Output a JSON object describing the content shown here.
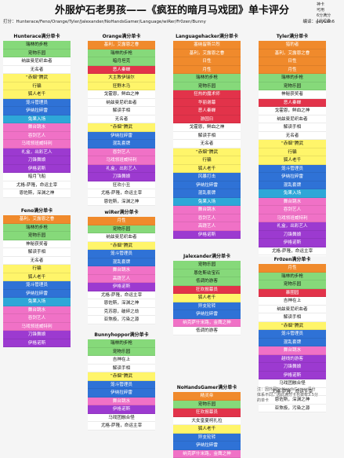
{
  "title": "外服炉石老男孩——《疯狂的暗月马戏团》单卡评分",
  "legend": [
    "神卡",
    "可用",
    "6分满分",
    "1分垃圾"
  ],
  "meta_left": "打分：Hunterace/Feno/Orange/Tyler/Jalexander/NoHandsGamer/Language/wiRer/Fr0zen/Bunny",
  "meta_right": "编译：geyuan6",
  "note": "注：因外网NoHandsGamer评分体系不同，因此满分卡也会有3.5分的单卡",
  "cards": [
    {
      "name": "Hunterace满分单卡",
      "rows": [
        {
          "text": "瑞林的步枪",
          "cls": "c-g"
        },
        {
          "text": "宠物乐园",
          "cls": "c-g"
        },
        {
          "text": "纳兹曼尼织血者",
          "cls": "c-w"
        },
        {
          "text": "无名者",
          "cls": "c-w"
        },
        {
          "text": "“赤烟”腾武",
          "cls": "c-y"
        },
        {
          "text": "行骗",
          "cls": "c-y"
        },
        {
          "text": "狐人老千",
          "cls": "c-y"
        },
        {
          "text": "笼斗管理员",
          "cls": "c-b"
        },
        {
          "text": "伊纳拉碎雷",
          "cls": "c-b"
        },
        {
          "text": "兔果入场",
          "cls": "c-c"
        },
        {
          "text": "舞台跳水",
          "cls": "c-k"
        },
        {
          "text": "吞剑艺人",
          "cls": "c-k"
        },
        {
          "text": "马戏领班威特利",
          "cls": "c-k"
        },
        {
          "text": "礼盒，出彩艺人",
          "cls": "c-p"
        },
        {
          "text": "刀锋舞娘",
          "cls": "c-p"
        },
        {
          "text": "伊格诺斯",
          "cls": "c-p"
        },
        {
          "text": "暗月飞船",
          "cls": "c-w"
        },
        {
          "text": "尤格-萨隆，命运主宰",
          "cls": "c-w"
        },
        {
          "text": "恩佐斯，深渊之神",
          "cls": "c-w"
        }
      ]
    },
    {
      "name": "Feno满分单卡",
      "rows": [
        {
          "text": "基利，艾露恩之眷",
          "cls": "c-o"
        },
        {
          "text": "瑞林的步枪",
          "cls": "c-g"
        },
        {
          "text": "宠物乐园",
          "cls": "c-g"
        },
        {
          "text": "神秘获奖者",
          "cls": "c-w"
        },
        {
          "text": "解读手相",
          "cls": "c-w"
        },
        {
          "text": "无名者",
          "cls": "c-w"
        },
        {
          "text": "行骗",
          "cls": "c-y"
        },
        {
          "text": "狐人老千",
          "cls": "c-y"
        },
        {
          "text": "笼斗管理员",
          "cls": "c-b"
        },
        {
          "text": "伊纳拉碎雷",
          "cls": "c-b"
        },
        {
          "text": "兔果入场",
          "cls": "c-c"
        },
        {
          "text": "舞台跳水",
          "cls": "c-k"
        },
        {
          "text": "吞剑艺人",
          "cls": "c-k"
        },
        {
          "text": "马戏领班威特利",
          "cls": "c-k"
        },
        {
          "text": "刀锋舞娘",
          "cls": "c-p"
        },
        {
          "text": "伊格诺斯",
          "cls": "c-p"
        }
      ]
    },
    {
      "name": "Orange满分单卡",
      "rows": [
        {
          "text": "基利，艾露恩之眷",
          "cls": "c-o"
        },
        {
          "text": "瑞林的步枪",
          "cls": "c-g"
        },
        {
          "text": "暗月坦克",
          "cls": "c-g"
        },
        {
          "text": "恶人秦蝉",
          "cls": "c-r"
        },
        {
          "text": "大主教伊瑞尔",
          "cls": "c-y"
        },
        {
          "text": "狂野木马",
          "cls": "c-y"
        },
        {
          "text": "戈霍恩，鲜血之神",
          "cls": "c-w"
        },
        {
          "text": "纳兹曼尼织血者",
          "cls": "c-w"
        },
        {
          "text": "解读手相",
          "cls": "c-w"
        },
        {
          "text": "无名者",
          "cls": "c-w"
        },
        {
          "text": "“赤烟”腾武",
          "cls": "c-y"
        },
        {
          "text": "伊纳拉碎雷",
          "cls": "c-b"
        },
        {
          "text": "混乱套牌",
          "cls": "c-b"
        },
        {
          "text": "吞剑艺人",
          "cls": "c-k"
        },
        {
          "text": "马戏领班威特利",
          "cls": "c-k"
        },
        {
          "text": "礼盒，出彩艺人",
          "cls": "c-p"
        },
        {
          "text": "刀锋舞娘",
          "cls": "c-p"
        },
        {
          "text": "狂欢小丑",
          "cls": "c-x"
        },
        {
          "text": "尤格-萨隆，命运主宰",
          "cls": "c-w"
        },
        {
          "text": "恩佐斯，深渊之神",
          "cls": "c-w"
        }
      ]
    },
    {
      "name": "wiRer满分单卡",
      "rows": [
        {
          "text": "月性",
          "cls": "c-o"
        },
        {
          "text": "宠物乐园",
          "cls": "c-g"
        },
        {
          "text": "纳兹曼尼织血者",
          "cls": "c-w"
        },
        {
          "text": "“赤烟”腾武",
          "cls": "c-y"
        },
        {
          "text": "笼斗管理员",
          "cls": "c-b"
        },
        {
          "text": "混乱套牌",
          "cls": "c-b"
        },
        {
          "text": "舞台跳水",
          "cls": "c-k"
        },
        {
          "text": "高跷艺人",
          "cls": "c-k"
        },
        {
          "text": "伊格诺斯",
          "cls": "c-p"
        },
        {
          "text": "尤格-萨隆，命运主宰",
          "cls": "c-w"
        },
        {
          "text": "恩佐斯，深渊之神",
          "cls": "c-w"
        },
        {
          "text": "克苏恩，破碎之劫",
          "cls": "c-w"
        },
        {
          "text": "亚煞极，污染之源",
          "cls": "c-w"
        }
      ]
    },
    {
      "name": "Bunnyhoppor满分单卡",
      "rows": [
        {
          "text": "瑞林的步枪",
          "cls": "c-g"
        },
        {
          "text": "宠物乐园",
          "cls": "c-g"
        },
        {
          "text": "吉神在上",
          "cls": "c-w"
        },
        {
          "text": "解读手相",
          "cls": "c-w"
        },
        {
          "text": "“赤烟”腾武",
          "cls": "c-y"
        },
        {
          "text": "笼斗管理员",
          "cls": "c-b"
        },
        {
          "text": "伊纳拉碎雷",
          "cls": "c-b"
        },
        {
          "text": "舞台跳水",
          "cls": "c-k"
        },
        {
          "text": "伊格诺斯",
          "cls": "c-p"
        },
        {
          "text": "马戏团融合怪",
          "cls": "c-w"
        },
        {
          "text": "尤格-萨隆，命运主宰",
          "cls": "c-w"
        }
      ]
    },
    {
      "name": "Languagehacker满分单卡",
      "rows": [
        {
          "text": "塞纳留斯兰烈",
          "cls": "c-o"
        },
        {
          "text": "基利，艾露恩之眷",
          "cls": "c-o"
        },
        {
          "text": "日性",
          "cls": "c-o"
        },
        {
          "text": "月性",
          "cls": "c-o"
        },
        {
          "text": "瑞林的步枪",
          "cls": "c-g"
        },
        {
          "text": "宠物乐园",
          "cls": "c-g"
        },
        {
          "text": "狂热的魔术师",
          "cls": "c-r"
        },
        {
          "text": "华丽谢幕",
          "cls": "c-r"
        },
        {
          "text": "恶人秦蝉",
          "cls": "c-r"
        },
        {
          "text": "游园日",
          "cls": "c-r"
        },
        {
          "text": "戈霍恩，鲜血之神",
          "cls": "c-w"
        },
        {
          "text": "解读手相",
          "cls": "c-w"
        },
        {
          "text": "无名者",
          "cls": "c-w"
        },
        {
          "text": "“赤烟”腾武",
          "cls": "c-y"
        },
        {
          "text": "行骗",
          "cls": "c-y"
        },
        {
          "text": "狐人老千",
          "cls": "c-y"
        },
        {
          "text": "风暴打击",
          "cls": "c-b"
        },
        {
          "text": "伊纳拉碎雷",
          "cls": "c-b"
        },
        {
          "text": "混乱套牌",
          "cls": "c-b"
        },
        {
          "text": "兔果入场",
          "cls": "c-c"
        },
        {
          "text": "舞台跳水",
          "cls": "c-k"
        },
        {
          "text": "吞剑艺人",
          "cls": "c-k"
        },
        {
          "text": "高跷艺人",
          "cls": "c-k"
        },
        {
          "text": "伊格诺斯",
          "cls": "c-p"
        }
      ]
    },
    {
      "name": "Jalexander满分单卡",
      "rows": [
        {
          "text": "宠物乐园",
          "cls": "c-g"
        },
        {
          "text": "恩佐斯幼宝石",
          "cls": "c-g"
        },
        {
          "text": "低调的游客",
          "cls": "c-g"
        },
        {
          "text": "狂欢报幕员",
          "cls": "c-r"
        },
        {
          "text": "狐人老千",
          "cls": "c-y"
        },
        {
          "text": "异支轮转",
          "cls": "c-b"
        },
        {
          "text": "伊纳拉碎雷",
          "cls": "c-b"
        },
        {
          "text": "纳克萨什米路，金鹰之神",
          "cls": "c-k"
        },
        {
          "text": "低调的游客",
          "cls": "c-w"
        }
      ]
    },
    {
      "name": "NoHandsGamer满分单卡",
      "rows": [
        {
          "text": "精灵帝",
          "cls": "c-o"
        },
        {
          "text": "宠物乐园",
          "cls": "c-g"
        },
        {
          "text": "狂欢报幕员",
          "cls": "c-r"
        },
        {
          "text": "大女皇夏柯扎拉",
          "cls": "c-w"
        },
        {
          "text": "狐人老千",
          "cls": "c-y"
        },
        {
          "text": "异支轮转",
          "cls": "c-b"
        },
        {
          "text": "伊纳拉碎雷",
          "cls": "c-b"
        },
        {
          "text": "纳克萨什米路，金鹰之神",
          "cls": "c-k"
        }
      ]
    },
    {
      "name": "Tyler满分单卡",
      "rows": [
        {
          "text": "猎豹者",
          "cls": "c-o"
        },
        {
          "text": "基利，艾露恩之眷",
          "cls": "c-o"
        },
        {
          "text": "日性",
          "cls": "c-o"
        },
        {
          "text": "月性",
          "cls": "c-o"
        },
        {
          "text": "瑞林的步枪",
          "cls": "c-g"
        },
        {
          "text": "宠物乐园",
          "cls": "c-g"
        },
        {
          "text": "神秘获奖者",
          "cls": "c-w"
        },
        {
          "text": "恶人秦蝉",
          "cls": "c-r"
        },
        {
          "text": "戈霍恩，鲜血之神",
          "cls": "c-w"
        },
        {
          "text": "纳兹曼尼织血者",
          "cls": "c-w"
        },
        {
          "text": "解读手相",
          "cls": "c-w"
        },
        {
          "text": "无名者",
          "cls": "c-w"
        },
        {
          "text": "“赤烟”腾武",
          "cls": "c-y"
        },
        {
          "text": "行骗",
          "cls": "c-y"
        },
        {
          "text": "狐人老千",
          "cls": "c-y"
        },
        {
          "text": "笼斗管理员",
          "cls": "c-b"
        },
        {
          "text": "伊纳拉碎雷",
          "cls": "c-b"
        },
        {
          "text": "混乱套牌",
          "cls": "c-b"
        },
        {
          "text": "兔果入场",
          "cls": "c-c"
        },
        {
          "text": "舞台跳水",
          "cls": "c-k"
        },
        {
          "text": "吞剑艺人",
          "cls": "c-k"
        },
        {
          "text": "马戏领班威特利",
          "cls": "c-k"
        },
        {
          "text": "礼盒，出彩艺人",
          "cls": "c-p"
        },
        {
          "text": "刀锋舞娘",
          "cls": "c-p"
        },
        {
          "text": "伊格诺斯",
          "cls": "c-p"
        },
        {
          "text": "尤格-萨隆，命运主宰",
          "cls": "c-w"
        },
        {
          "text": "恩佐斯，深渊之神",
          "cls": "c-w"
        }
      ]
    },
    {
      "name": "Fr0zen满分单卡",
      "rows": [
        {
          "text": "月性",
          "cls": "c-o"
        },
        {
          "text": "瑞林的步枪",
          "cls": "c-g"
        },
        {
          "text": "宠物乐园",
          "cls": "c-g"
        },
        {
          "text": "暴圈园",
          "cls": "c-r"
        },
        {
          "text": "吉神在上",
          "cls": "c-w"
        },
        {
          "text": "纳兹曼尼织血者",
          "cls": "c-w"
        },
        {
          "text": "解读手相",
          "cls": "c-w"
        },
        {
          "text": "“赤烟”腾武",
          "cls": "c-y"
        },
        {
          "text": "笼斗管理员",
          "cls": "c-b"
        },
        {
          "text": "混乱套牌",
          "cls": "c-b"
        },
        {
          "text": "舞台跳水",
          "cls": "c-k"
        },
        {
          "text": "越线的游客",
          "cls": "c-p"
        },
        {
          "text": "刀锋舞娘",
          "cls": "c-p"
        },
        {
          "text": "伊格诺斯",
          "cls": "c-p"
        },
        {
          "text": "马戏团融合怪",
          "cls": "c-w"
        },
        {
          "text": "尤格-萨隆，命运主宰",
          "cls": "c-w"
        },
        {
          "text": "恩佐斯，深渊之神",
          "cls": "c-w"
        },
        {
          "text": "亚煞极，污染之源",
          "cls": "c-w"
        }
      ]
    }
  ]
}
